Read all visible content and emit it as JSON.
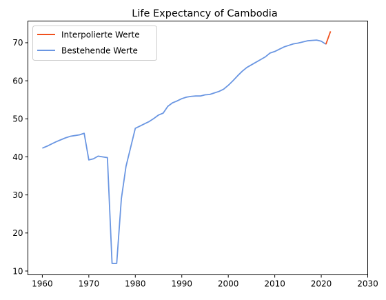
{
  "chart_data": {
    "type": "line",
    "title": "Life Expectancy of Cambodia",
    "xlabel": "",
    "ylabel": "",
    "xlim": [
      1956.9,
      2030
    ],
    "ylim": [
      9.0,
      75.7
    ],
    "xticks": [
      1960,
      1970,
      1980,
      1990,
      2000,
      2010,
      2020,
      2030
    ],
    "yticks": [
      10,
      20,
      30,
      40,
      50,
      60,
      70
    ],
    "grid": false,
    "legend_position": "top-left",
    "series": [
      {
        "name": "Interpolierte Werte",
        "color": "#f0511e",
        "x": [
          2021,
          2022
        ],
        "y": [
          69.6,
          73.0
        ]
      },
      {
        "name": "Bestehende Werte",
        "color": "#6a96e2",
        "x": [
          1960,
          1961,
          1962,
          1963,
          1964,
          1965,
          1966,
          1967,
          1968,
          1969,
          1970,
          1971,
          1972,
          1973,
          1974,
          1975,
          1976,
          1977,
          1978,
          1979,
          1980,
          1981,
          1982,
          1983,
          1984,
          1985,
          1986,
          1987,
          1988,
          1989,
          1990,
          1991,
          1992,
          1993,
          1994,
          1995,
          1996,
          1997,
          1998,
          1999,
          2000,
          2001,
          2002,
          2003,
          2004,
          2005,
          2006,
          2007,
          2008,
          2009,
          2010,
          2011,
          2012,
          2013,
          2014,
          2015,
          2016,
          2017,
          2018,
          2019,
          2020,
          2021
        ],
        "y": [
          42.3,
          42.8,
          43.4,
          44.0,
          44.5,
          45.0,
          45.4,
          45.6,
          45.8,
          46.2,
          39.2,
          39.5,
          40.2,
          40.0,
          39.8,
          12.0,
          12.0,
          29.0,
          37.5,
          42.5,
          47.5,
          48.1,
          48.7,
          49.3,
          50.1,
          51.0,
          51.5,
          53.3,
          54.2,
          54.7,
          55.3,
          55.7,
          55.9,
          56.0,
          56.0,
          56.3,
          56.4,
          56.8,
          57.2,
          57.8,
          58.8,
          60.0,
          61.3,
          62.5,
          63.5,
          64.2,
          64.9,
          65.6,
          66.3,
          67.3,
          67.7,
          68.3,
          68.9,
          69.3,
          69.7,
          69.9,
          70.2,
          70.5,
          70.6,
          70.7,
          70.4,
          69.6
        ]
      }
    ]
  }
}
